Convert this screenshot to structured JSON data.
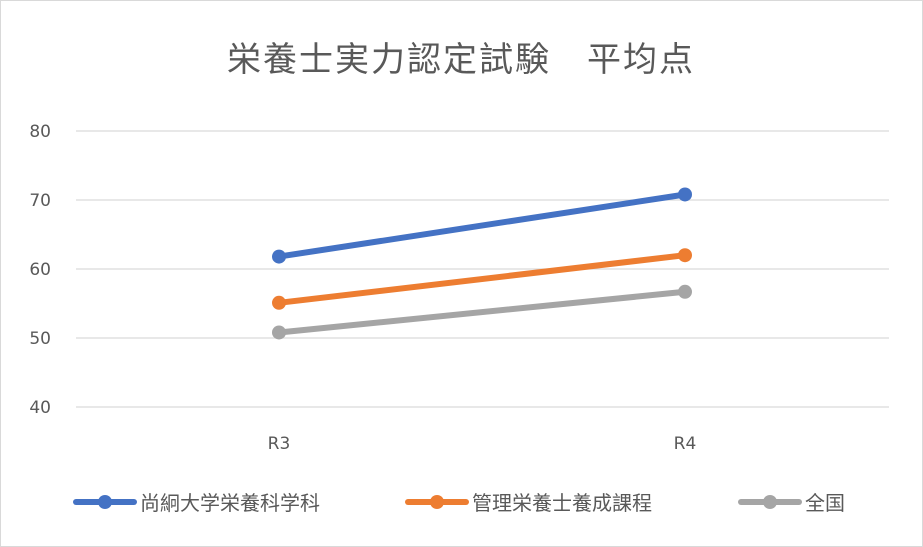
{
  "chart_data": {
    "type": "line",
    "title": "栄養士実力認定試験　平均点",
    "categories": [
      "R3",
      "R4"
    ],
    "series": [
      {
        "name": "尚絅大学栄養科学科",
        "values": [
          61.8,
          70.8
        ],
        "color": "#4472c4"
      },
      {
        "name": "管理栄養士養成課程",
        "values": [
          55.1,
          62.0
        ],
        "color": "#ed7d31"
      },
      {
        "name": "全国",
        "values": [
          50.8,
          56.7
        ],
        "color": "#a5a5a5"
      }
    ],
    "yticks": [
      40,
      50,
      60,
      70,
      80
    ],
    "ylim": [
      40,
      80
    ],
    "grid": true,
    "legend_position": "bottom"
  }
}
